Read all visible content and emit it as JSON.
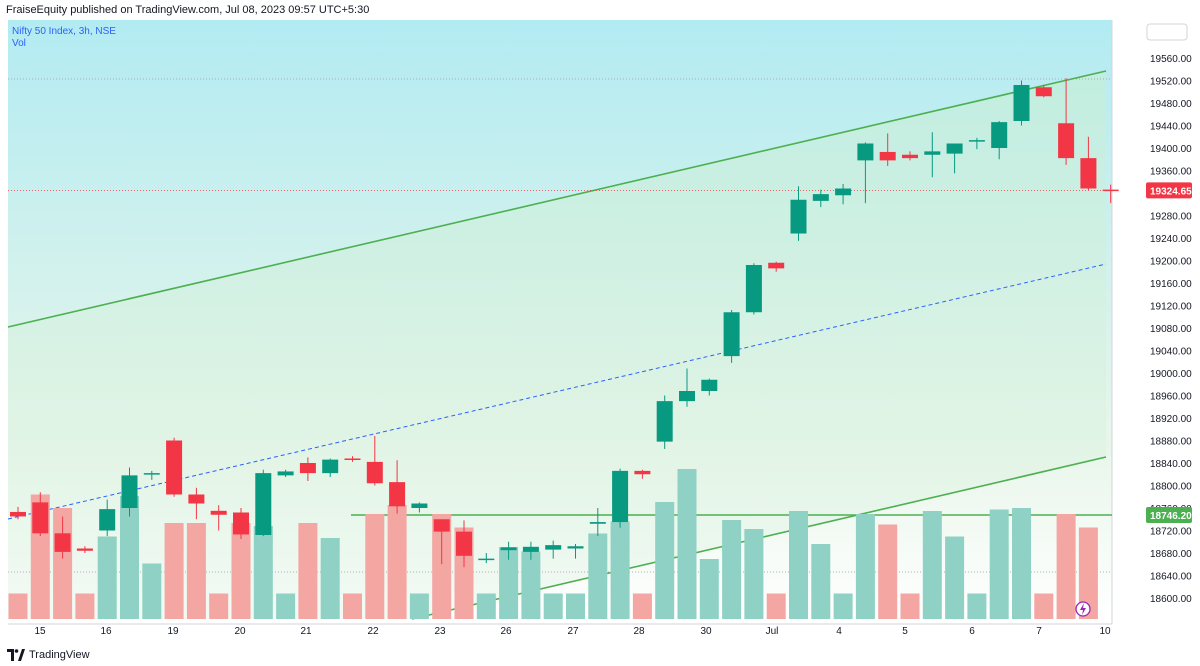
{
  "header": {
    "publisher": "FraiseEquity published on TradingView.com, Jul 08, 2023 09:57 UTC+5:30"
  },
  "legend": {
    "symbol": "Nifty 50 Index, 3h, NSE",
    "volume": "Vol"
  },
  "footer": {
    "brand": "TradingView"
  },
  "colors": {
    "up": "#089981",
    "down": "#f23645",
    "up_vol": "#8fd1c4",
    "down_vol": "#f4a6a3",
    "channel": "#4caf50",
    "midline": "#2962ff",
    "bg_top": "#b2ebf2",
    "bg_bottom": "#ffffff"
  },
  "icons": {
    "bottom_right": "lightning-icon",
    "logo": "tradingview-logo-icon"
  },
  "chart_data": {
    "type": "candlestick",
    "title": "Nifty 50 Index, 3h, NSE",
    "y_ticks": [
      18600,
      18640,
      18680,
      18720,
      18760,
      18800,
      18840,
      18880,
      18920,
      18960,
      19000,
      19040,
      19080,
      19120,
      19160,
      19200,
      19240,
      19280,
      19320,
      19360,
      19400,
      19440,
      19480,
      19520,
      19560
    ],
    "x_ticks": [
      "15",
      "16",
      "19",
      "20",
      "21",
      "22",
      "23",
      "26",
      "27",
      "28",
      "30",
      "Jul",
      "4",
      "5",
      "6",
      "7",
      "10"
    ],
    "ylim": [
      18570,
      19600
    ],
    "last_price": "19324.65",
    "horizontal_level": "18746.20",
    "candles": [
      {
        "o": 18753,
        "h": 18762,
        "l": 18740,
        "c": 18745,
        "v": 0.17
      },
      {
        "o": 18770,
        "h": 18788,
        "l": 18710,
        "c": 18715,
        "v": 0.83
      },
      {
        "o": 18715,
        "h": 18745,
        "l": 18670,
        "c": 18682,
        "v": 0.74
      },
      {
        "o": 18688,
        "h": 18692,
        "l": 18680,
        "c": 18684,
        "v": 0.17
      },
      {
        "o": 18720,
        "h": 18775,
        "l": 18710,
        "c": 18758,
        "v": 0.55
      },
      {
        "o": 18760,
        "h": 18832,
        "l": 18745,
        "c": 18818,
        "v": 0.82
      },
      {
        "o": 18820,
        "h": 18826,
        "l": 18810,
        "c": 18822,
        "v": 0.37
      },
      {
        "o": 18880,
        "h": 18885,
        "l": 18780,
        "c": 18784,
        "v": 0.64
      },
      {
        "o": 18784,
        "h": 18796,
        "l": 18740,
        "c": 18768,
        "v": 0.64
      },
      {
        "o": 18755,
        "h": 18765,
        "l": 18720,
        "c": 18748,
        "v": 0.17
      },
      {
        "o": 18752,
        "h": 18760,
        "l": 18705,
        "c": 18713,
        "v": 0.64
      },
      {
        "o": 18712,
        "h": 18828,
        "l": 18710,
        "c": 18822,
        "v": 0.62
      },
      {
        "o": 18818,
        "h": 18828,
        "l": 18815,
        "c": 18825,
        "v": 0.17
      },
      {
        "o": 18840,
        "h": 18850,
        "l": 18808,
        "c": 18822,
        "v": 0.64
      },
      {
        "o": 18822,
        "h": 18848,
        "l": 18815,
        "c": 18846,
        "v": 0.54
      },
      {
        "o": 18848,
        "h": 18852,
        "l": 18842,
        "c": 18846,
        "v": 0.17
      },
      {
        "o": 18842,
        "h": 18888,
        "l": 18800,
        "c": 18804,
        "v": 0.7
      },
      {
        "o": 18806,
        "h": 18845,
        "l": 18750,
        "c": 18763,
        "v": 0.76
      },
      {
        "o": 18760,
        "h": 18770,
        "l": 18752,
        "c": 18768,
        "v": 0.17
      },
      {
        "o": 18740,
        "h": 18740,
        "l": 18660,
        "c": 18718,
        "v": 0.7
      },
      {
        "o": 18718,
        "h": 18738,
        "l": 18655,
        "c": 18675,
        "v": 0.61
      },
      {
        "o": 18668,
        "h": 18680,
        "l": 18662,
        "c": 18670,
        "v": 0.17
      },
      {
        "o": 18685,
        "h": 18700,
        "l": 18668,
        "c": 18690,
        "v": 0.48
      },
      {
        "o": 18682,
        "h": 18700,
        "l": 18668,
        "c": 18691,
        "v": 0.45
      },
      {
        "o": 18686,
        "h": 18702,
        "l": 18670,
        "c": 18694,
        "v": 0.17
      },
      {
        "o": 18688,
        "h": 18696,
        "l": 18670,
        "c": 18692,
        "v": 0.17
      },
      {
        "o": 18732,
        "h": 18760,
        "l": 18710,
        "c": 18735,
        "v": 0.57
      },
      {
        "o": 18735,
        "h": 18830,
        "l": 18725,
        "c": 18826,
        "v": 0.65
      },
      {
        "o": 18826,
        "h": 18828,
        "l": 18812,
        "c": 18820,
        "v": 0.17
      },
      {
        "o": 18878,
        "h": 18960,
        "l": 18865,
        "c": 18950,
        "v": 0.78
      },
      {
        "o": 18950,
        "h": 19008,
        "l": 18940,
        "c": 18968,
        "v": 1.0
      },
      {
        "o": 18968,
        "h": 18990,
        "l": 18960,
        "c": 18988,
        "v": 0.4
      },
      {
        "o": 19030,
        "h": 19112,
        "l": 19018,
        "c": 19108,
        "v": 0.66
      },
      {
        "o": 19108,
        "h": 19195,
        "l": 19104,
        "c": 19192,
        "v": 0.6
      },
      {
        "o": 19196,
        "h": 19198,
        "l": 19180,
        "c": 19186,
        "v": 0.17
      },
      {
        "o": 19248,
        "h": 19332,
        "l": 19235,
        "c": 19308,
        "v": 0.72
      },
      {
        "o": 19306,
        "h": 19326,
        "l": 19295,
        "c": 19318,
        "v": 0.5
      },
      {
        "o": 19316,
        "h": 19336,
        "l": 19300,
        "c": 19328,
        "v": 0.17
      },
      {
        "o": 19378,
        "h": 19410,
        "l": 19302,
        "c": 19408,
        "v": 0.7
      },
      {
        "o": 19393,
        "h": 19426,
        "l": 19368,
        "c": 19378,
        "v": 0.63
      },
      {
        "o": 19388,
        "h": 19394,
        "l": 19378,
        "c": 19382,
        "v": 0.17
      },
      {
        "o": 19388,
        "h": 19428,
        "l": 19348,
        "c": 19394,
        "v": 0.72
      },
      {
        "o": 19390,
        "h": 19408,
        "l": 19355,
        "c": 19408,
        "v": 0.55
      },
      {
        "o": 19412,
        "h": 19418,
        "l": 19398,
        "c": 19414,
        "v": 0.17
      },
      {
        "o": 19400,
        "h": 19448,
        "l": 19380,
        "c": 19446,
        "v": 0.73
      },
      {
        "o": 19448,
        "h": 19520,
        "l": 19440,
        "c": 19512,
        "v": 0.74
      },
      {
        "o": 19508,
        "h": 19512,
        "l": 19490,
        "c": 19492,
        "v": 0.17
      },
      {
        "o": 19444,
        "h": 19524,
        "l": 19370,
        "c": 19382,
        "v": 0.7
      },
      {
        "o": 19382,
        "h": 19420,
        "l": 19325,
        "c": 19328,
        "v": 0.61
      },
      {
        "o": 19326,
        "h": 19335,
        "l": 19302,
        "c": 19324.65,
        "v": 0.0
      }
    ]
  }
}
